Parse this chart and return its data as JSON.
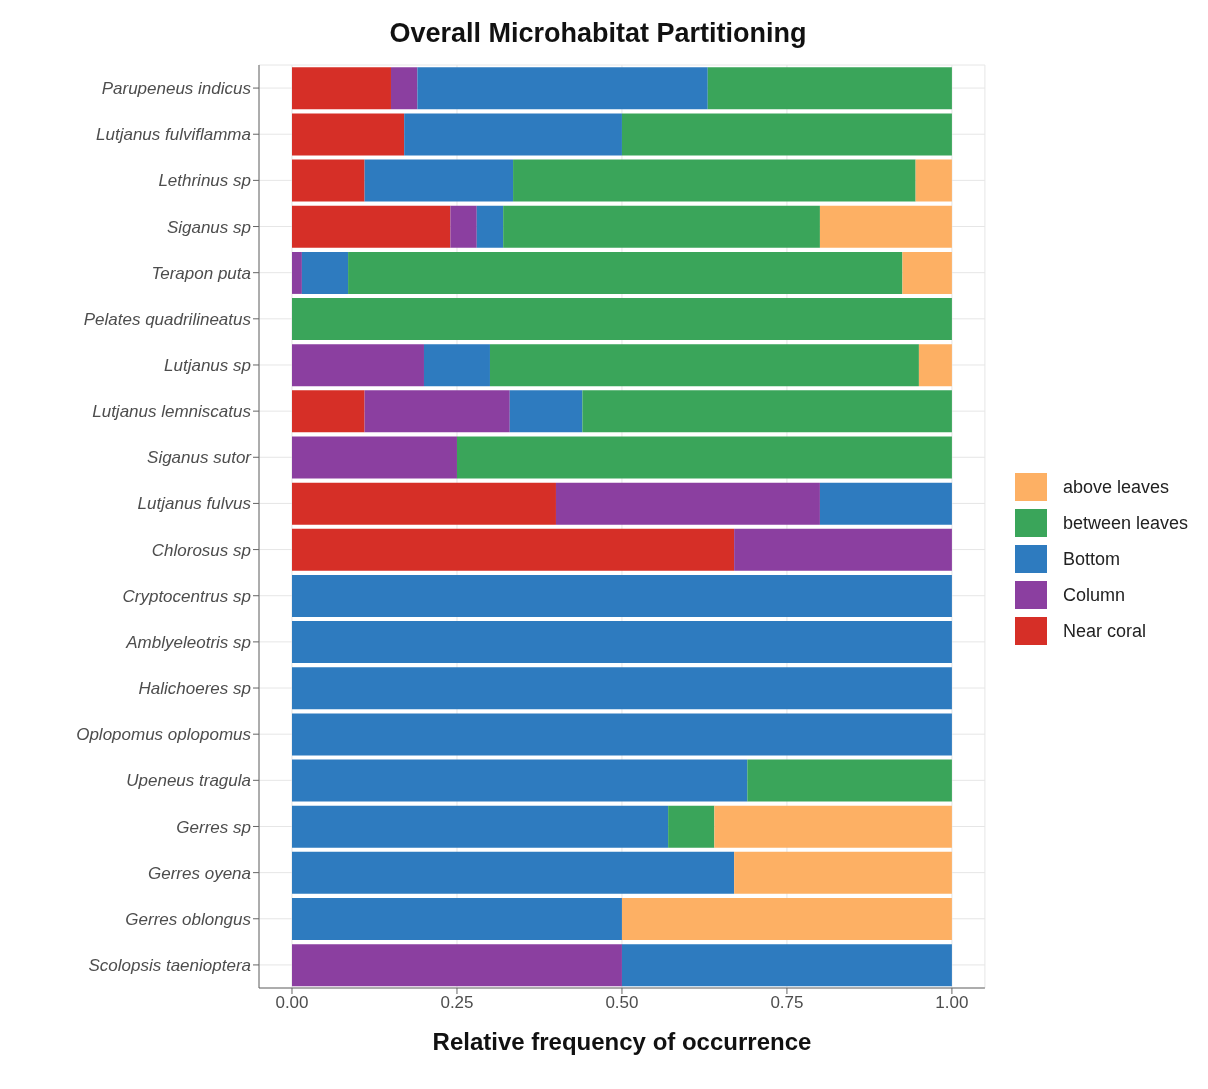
{
  "chart_data": {
    "type": "bar",
    "orientation": "horizontal",
    "stacked": true,
    "title": "Overall Microhabitat Partitioning",
    "xlabel": "Relative frequency of occurrence",
    "categories": [
      "Parupeneus indicus",
      "Lutjanus fulviflamma",
      "Lethrinus sp",
      "Siganus sp",
      "Terapon puta",
      "Pelates quadrilineatus",
      "Lutjanus sp",
      "Lutjanus lemniscatus",
      "Siganus sutor",
      "Lutjanus fulvus",
      "Chlorosus sp",
      "Cryptocentrus sp",
      "Amblyeleotris sp",
      "Halichoeres sp",
      "Oplopomus oplopomus",
      "Upeneus tragula",
      "Gerres sp",
      "Gerres oyena",
      "Gerres oblongus",
      "Scolopsis taenioptera"
    ],
    "series": [
      {
        "name": "Near coral",
        "color": "#d62f27",
        "values": [
          0.15,
          0.17,
          0.11,
          0.24,
          null,
          null,
          null,
          0.11,
          null,
          0.4,
          0.67,
          null,
          null,
          null,
          null,
          null,
          null,
          null,
          null,
          null
        ]
      },
      {
        "name": "Column",
        "color": "#8b3fa0",
        "values": [
          0.04,
          null,
          null,
          0.04,
          0.015,
          null,
          0.2,
          0.22,
          0.25,
          0.4,
          0.33,
          null,
          null,
          null,
          null,
          null,
          null,
          null,
          null,
          0.5
        ]
      },
      {
        "name": "Bottom",
        "color": "#2e7bbf",
        "values": [
          0.44,
          0.33,
          0.225,
          0.04,
          0.07,
          null,
          0.1,
          0.11,
          null,
          0.2,
          null,
          1,
          1,
          1,
          1,
          0.69,
          0.57,
          0.67,
          0.5,
          0.5
        ]
      },
      {
        "name": "between leaves",
        "color": "#3aa55a",
        "values": [
          0.37,
          0.5,
          0.61,
          0.48,
          0.84,
          1,
          0.65,
          0.56,
          0.75,
          null,
          null,
          null,
          null,
          null,
          null,
          0.31,
          0.07,
          null,
          null,
          null
        ]
      },
      {
        "name": "above leaves",
        "color": "#fdb064",
        "values": [
          null,
          null,
          0.055,
          0.2,
          0.075,
          null,
          0.05,
          null,
          null,
          null,
          null,
          null,
          null,
          null,
          null,
          null,
          0.36,
          0.33,
          0.5,
          null
        ]
      }
    ],
    "xlim": [
      -0.05,
      1.05
    ],
    "xticks": [
      {
        "value": 0,
        "label": "0.00"
      },
      {
        "value": 0.25,
        "label": "0.25"
      },
      {
        "value": 0.5,
        "label": "0.50"
      },
      {
        "value": 0.75,
        "label": "0.75"
      },
      {
        "value": 1,
        "label": "1.00"
      }
    ],
    "grid": true,
    "legend": "right"
  }
}
